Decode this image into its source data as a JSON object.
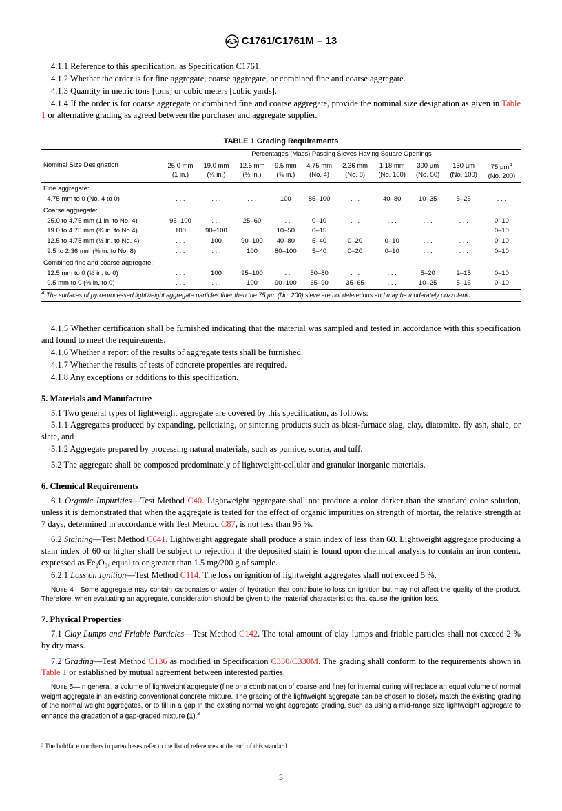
{
  "header": {
    "title": "C1761/C1761M – 13"
  },
  "intro": {
    "p411": "4.1.1 Reference to this specification, as Specification C1761.",
    "p412": "4.1.2 Whether the order is for fine aggregate, coarse aggregate, or combined fine and coarse aggregate.",
    "p413": "4.1.3 Quantity in metric tons [tons] or cubic meters [cubic yards].",
    "p414a": "4.1.4 If the order is for coarse aggregate or combined fine and coarse aggregate, provide the nominal size designation as given in ",
    "p414b": " or alternative grading as agreed between the purchaser and aggregate supplier.",
    "table_ref": "Table 1"
  },
  "table": {
    "title": "TABLE 1 Grading Requirements",
    "span_header": "Percentages (Mass) Passing Sieves Having Square Openings",
    "nom_label": "Nominal Size Designation",
    "cols": [
      {
        "a": "25.0 mm",
        "b": "(1 in.)"
      },
      {
        "a": "19.0 mm",
        "b": "(¾ in.)"
      },
      {
        "a": "12.5 mm",
        "b": "(½ in.)"
      },
      {
        "a": "9.5 mm",
        "b": "(⅜ in.)"
      },
      {
        "a": "4.75 mm",
        "b": "(No. 4)"
      },
      {
        "a": "2.36 mm",
        "b": "(No. 8)"
      },
      {
        "a": "1.18 mm",
        "b": "(No. 160)"
      },
      {
        "a": "300 µm",
        "b": "(No. 50)"
      },
      {
        "a": "150 µm",
        "b": "(No. 100)"
      },
      {
        "a": "75 µm",
        "b": "(No. 200)",
        "sup": "A"
      }
    ],
    "groups": [
      {
        "name": "Fine aggregate:",
        "rows": [
          {
            "d": "  4.75 mm to 0 (No. 4 to 0)",
            "v": [
              ". . .",
              ". . .",
              ". . .",
              "100",
              "85–100",
              ". . .",
              "40–80",
              "10–35",
              "5–25",
              ". . ."
            ]
          }
        ]
      },
      {
        "name": "Coarse aggregate:",
        "rows": [
          {
            "d": "  25.0 to 4.75 mm (1 in. to No. 4)",
            "v": [
              "95–100",
              ". . .",
              "25–60",
              ". . .",
              "0–10",
              ". . .",
              ". . .",
              ". . .",
              ". . .",
              "0–10"
            ]
          },
          {
            "d": "  19.0 to 4.75 mm (¾ in. to No.4)",
            "v": [
              "100",
              "90–100",
              ". . .",
              "10–50",
              "0–15",
              ". . .",
              ". . .",
              ". . .",
              ". . .",
              "0–10"
            ]
          },
          {
            "d": "  12.5 to 4.75 mm (½ in. to No. 4)",
            "v": [
              ". . .",
              "100",
              "90–100",
              "40–80",
              "5–40",
              "0–20",
              "0–10",
              ". . .",
              ". . .",
              "0–10"
            ]
          },
          {
            "d": "  9.5 to 2.36 mm (⅜ in. to No. 8)",
            "v": [
              ". . .",
              ". . .",
              "100",
              "80–100",
              "5–40",
              "0–20",
              "0–10",
              ". . .",
              ". . .",
              "0–10"
            ]
          }
        ]
      },
      {
        "name": "Combined fine and coarse aggregate:",
        "rows": [
          {
            "d": "  12.5 mm to 0 (½ in. to 0)",
            "v": [
              ". . .",
              "100",
              "95–100",
              ". . .",
              "50–80",
              ". . .",
              ". . .",
              "5–20",
              "2–15",
              "0–10"
            ]
          },
          {
            "d": "  9.5 mm to 0 (⅜ in. to 0)",
            "v": [
              ". . .",
              ". . .",
              "100",
              "90–100",
              "65–90",
              "35–65",
              ". . .",
              "10–25",
              "5–15",
              "0–10"
            ]
          }
        ]
      }
    ],
    "footnote": " The surfaces of pyro-processed lightweight aggregate particles finer than the 75 µm (No. 200) sieve are not deleterious and may be moderately pozzolanic.",
    "footnote_sup": "A"
  },
  "after_table": {
    "p415": "4.1.5 Whether certification shall be furnished indicating that the material was sampled and tested in accordance with this specification and found to meet the requirements.",
    "p416": "4.1.6 Whether a report of the results of aggregate tests shall be furnished.",
    "p417": "4.1.7 Whether the results of tests of concrete properties are required.",
    "p418": "4.1.8 Any exceptions or additions to this specification."
  },
  "sec5": {
    "title": "5. Materials and Manufacture",
    "p51": "5.1 Two general types of lightweight aggregate are covered by this specification, as follows:",
    "p511": "5.1.1 Aggregates produced by expanding, pelletizing, or sintering products such as blast-furnace slag, clay, diatomite, fly ash, shale, or slate, and",
    "p512": "5.1.2 Aggregate prepared by processing natural materials, such as pumice, scoria, and tuff.",
    "p52": "5.2 The aggregate shall be composed predominately of lightweight-cellular and granular inorganic materials."
  },
  "sec6": {
    "title": "6. Chemical Requirements",
    "p61_lead": "Organic Impurities",
    "p61a": "—Test Method ",
    "p61_link1": "C40",
    "p61b": ". Lightweight aggregate shall not produce a color darker than the standard color solution, unless it is demonstrated that when the aggregate is tested for the effect of organic impurities on strength of mortar, the relative strength at 7 days, determined in accordance with Test Method ",
    "p61_link2": "C87",
    "p61c": ", is not less than 95 %.",
    "p62_lead": "Staining",
    "p62a": "—Test Method ",
    "p62_link": "C641",
    "p62b": ". Lightweight aggregate shall produce a stain index of less than 60. Lightweight aggregate producing a stain index of 60 or higher shall be subject to rejection if the deposited stain is found upon chemical analysis to contain an iron content, expressed as Fe₂O₃, equal to or greater than 1.5 mg/200 g of sample.",
    "p621_lead": "Loss on Ignition",
    "p621a": "—Test Method ",
    "p621_link": "C114",
    "p621b": ". The loss on ignition of lightweight aggregates shall not exceed 5 %.",
    "note4": "Note 4—Some aggregate may contain carbonates or water of hydration that contribute to loss on ignition but may not affect the quality of the product. Therefore, when evaluating an aggregate, consideration should be given to the material characteristics that cause the ignition loss."
  },
  "sec7": {
    "title": "7. Physical Properties",
    "p71_lead": "Clay Lumps and Friable Particles",
    "p71a": "—Test Method ",
    "p71_link": "C142",
    "p71b": ". The total amount of clay lumps and friable particles shall not exceed 2 % by dry mass.",
    "p72_lead": "Grading",
    "p72a": "—Test Method ",
    "p72_link1": "C136",
    "p72b": " as modified in Specification ",
    "p72_link2": "C330/C330M",
    "p72c": ". The grading shall conform to the requirements shown in ",
    "p72_tref": "Table 1",
    "p72d": " or established by mutual agreement between interested parties.",
    "note5a": "Note 5—In general, a volume of lightweight aggregate (fine or a combination of coarse and fine) for internal curing will replace an equal volume of normal weight aggregate in an existing conventional concrete mixture. The grading of the lightweight aggregate can be chosen to closely match the existing grading of the normal weight aggregates, or to fill in a gap in the existing normal weight aggregate grading, such as using a mid-range size lightweight aggregate to enhance the gradation of a gap-graded mixture ",
    "note5_ref": "(1)",
    "note5_dot": "."
  },
  "bottom_footnote": "³ The boldface numbers in parentheses refer to the list of references at the end of this standard.",
  "pagenum": "3"
}
